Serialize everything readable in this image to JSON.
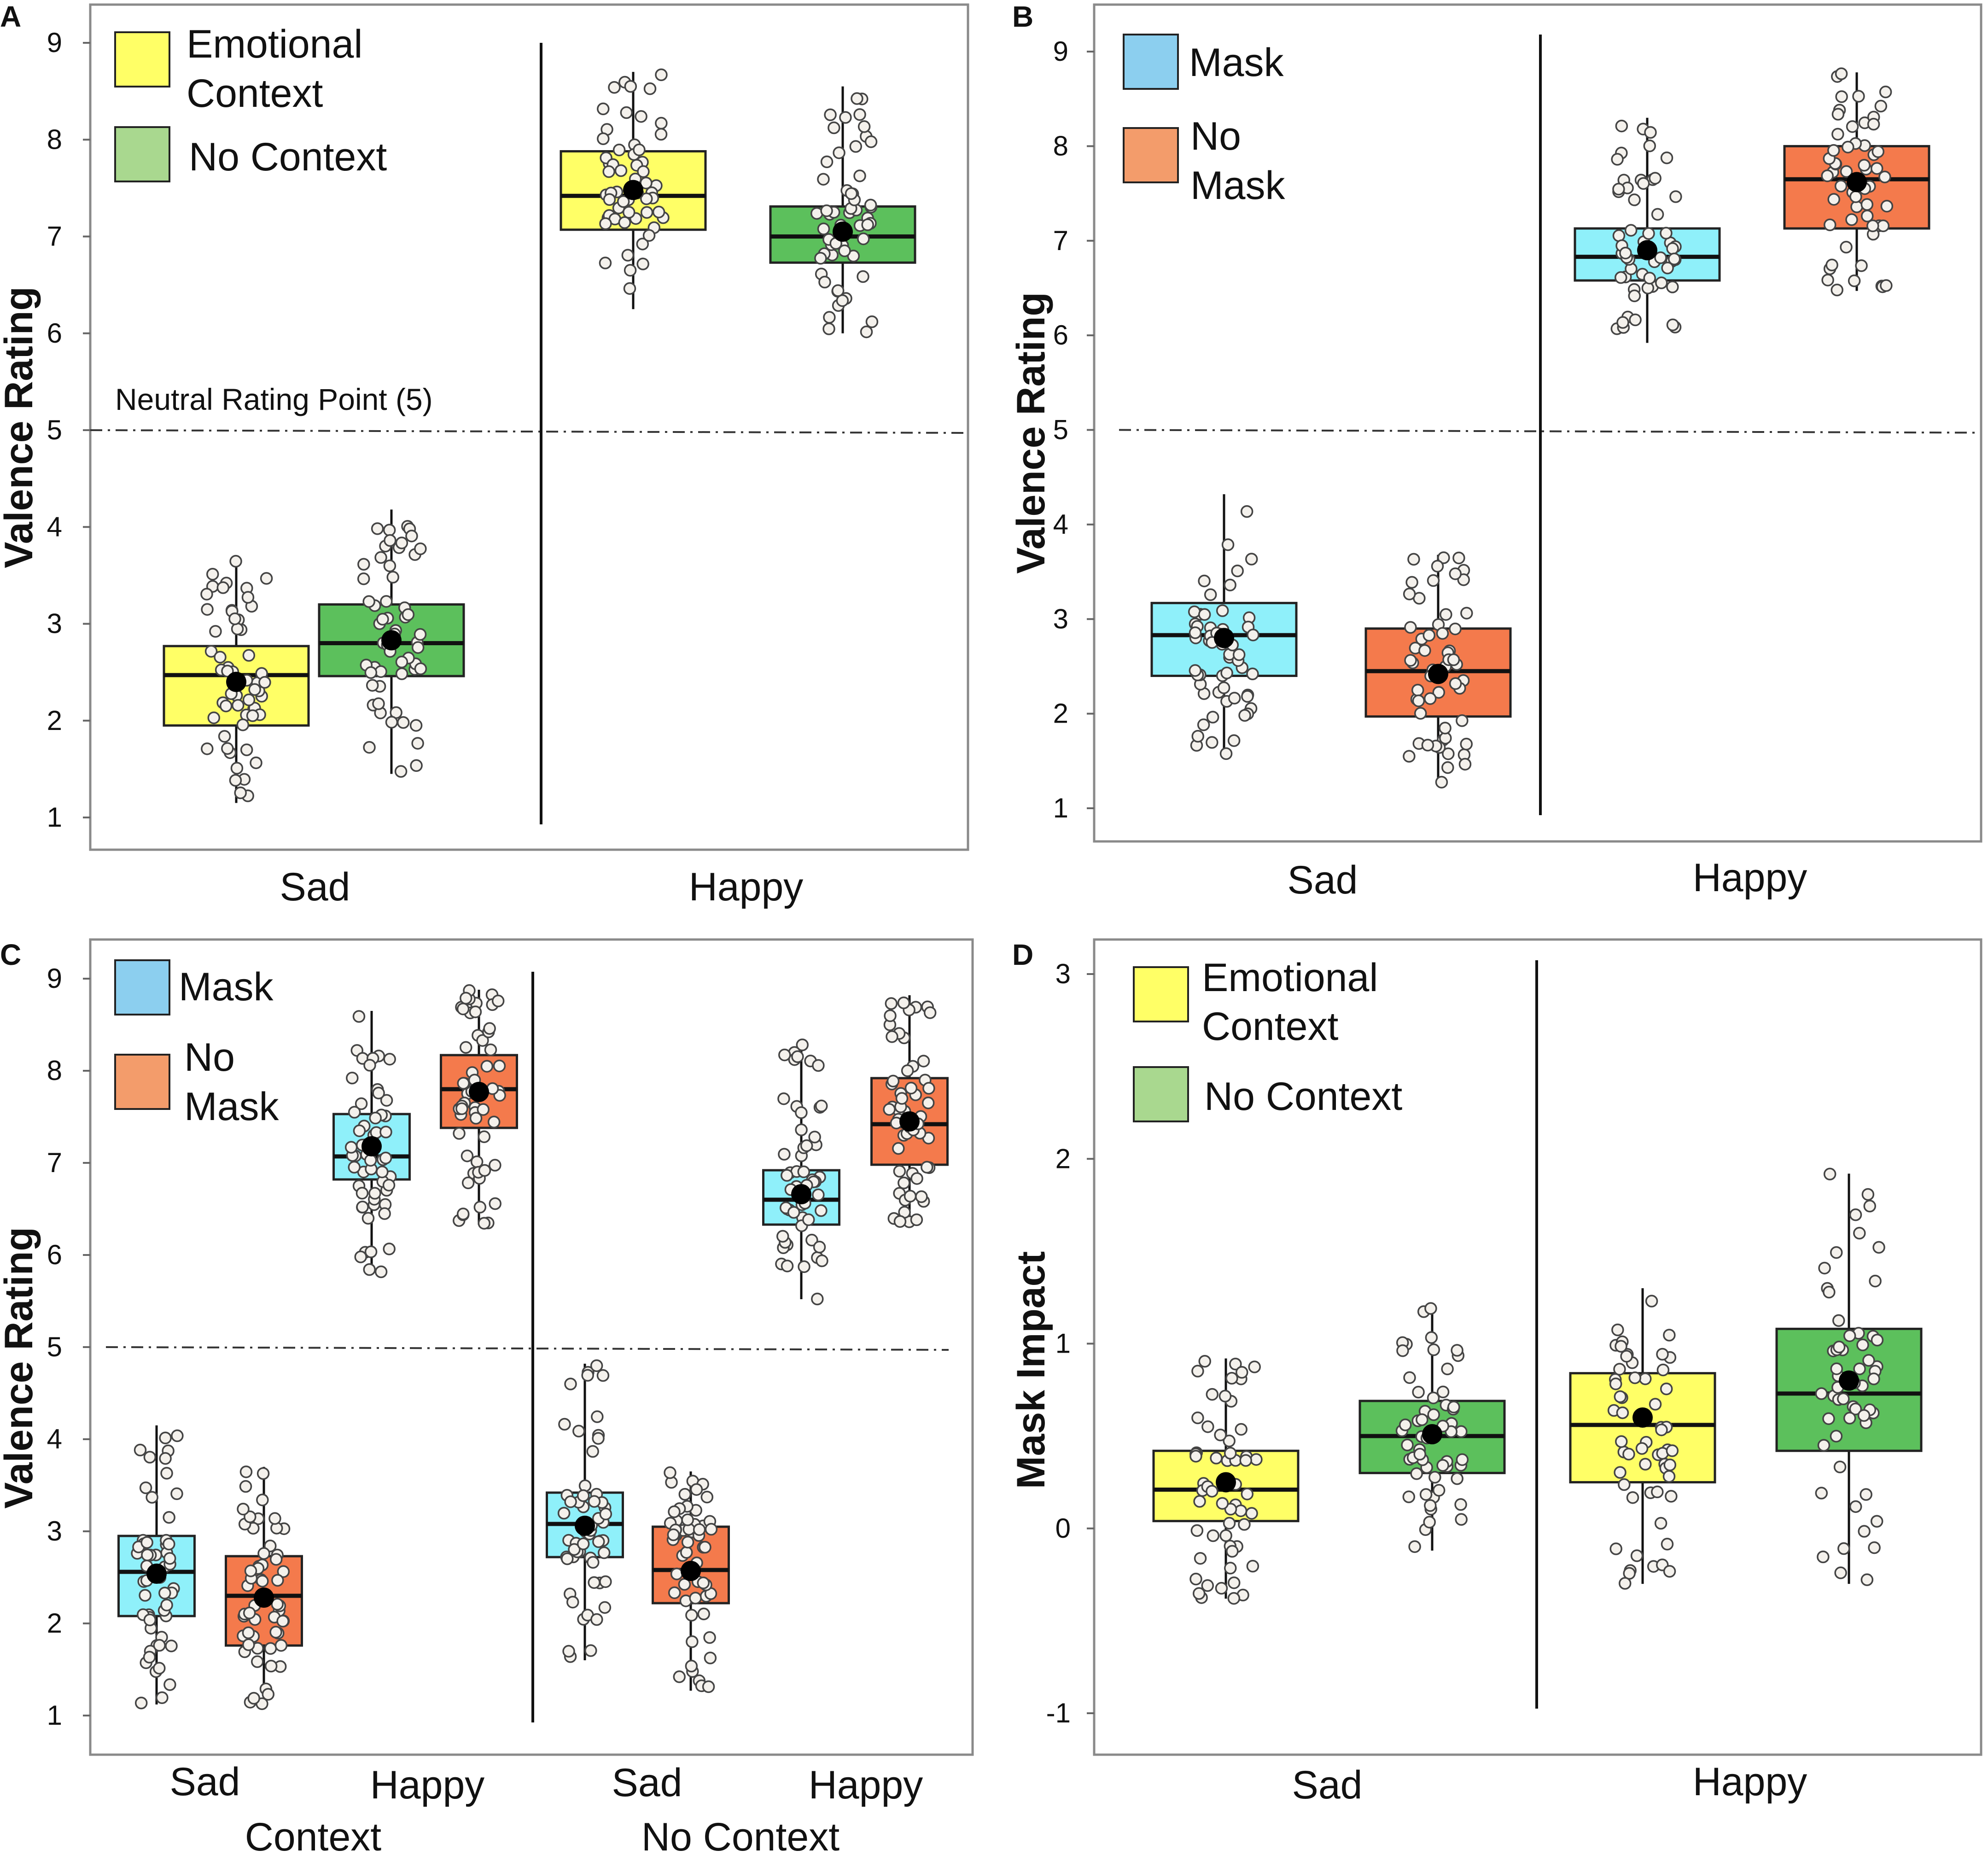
{
  "colors": {
    "emotional_context": "#ffff66",
    "no_context": "#5cc05c",
    "no_context_legend": "#a9d88f",
    "mask": "#8ff0fa",
    "mask_legend": "#8ccfef",
    "no_mask": "#f47a4c",
    "no_mask_legend": "#f39c6b",
    "point_fill": "#ffffff",
    "mean": "#000000"
  },
  "chart_data": [
    {
      "panel": "A",
      "type": "box",
      "ylabel": "Valence Rating",
      "ylim": [
        1,
        9
      ],
      "yticks": [
        "1",
        "2",
        "3",
        "4",
        "5",
        "6",
        "7",
        "8",
        "9"
      ],
      "reference_line": {
        "y": 5,
        "label": "Neutral Rating Point (5)"
      },
      "groups": [
        "Sad",
        "Happy"
      ],
      "legend": [
        {
          "label_lines": [
            "Emotional",
            "Context"
          ],
          "color": "#ffff66"
        },
        {
          "label_lines": [
            "No Context"
          ],
          "color": "#a9d88f"
        }
      ],
      "boxes": [
        {
          "group": "Sad",
          "series": "Emotional Context",
          "color": "#ffff66",
          "whisker_low": 1.15,
          "q1": 1.95,
          "median": 2.47,
          "q3": 2.77,
          "whisker_high": 3.65,
          "mean": 2.4
        },
        {
          "group": "Sad",
          "series": "No Context",
          "color": "#5cc05c",
          "whisker_low": 1.45,
          "q1": 2.46,
          "median": 2.8,
          "q3": 3.2,
          "whisker_high": 4.18,
          "mean": 2.83
        },
        {
          "group": "Happy",
          "series": "Emotional Context",
          "color": "#ffff66",
          "whisker_low": 6.25,
          "q1": 7.07,
          "median": 7.42,
          "q3": 7.88,
          "whisker_high": 8.7,
          "mean": 7.48
        },
        {
          "group": "Happy",
          "series": "No Context",
          "color": "#5cc05c",
          "whisker_low": 6.0,
          "q1": 6.73,
          "median": 7.0,
          "q3": 7.31,
          "whisker_high": 8.55,
          "mean": 7.05
        }
      ]
    },
    {
      "panel": "B",
      "type": "box",
      "ylabel": "Valence Rating",
      "ylim": [
        1,
        9
      ],
      "yticks": [
        "1",
        "2",
        "3",
        "4",
        "5",
        "6",
        "7",
        "8",
        "9"
      ],
      "reference_line": {
        "y": 5,
        "label": ""
      },
      "groups": [
        "Sad",
        "Happy"
      ],
      "legend": [
        {
          "label_lines": [
            "Mask"
          ],
          "color": "#8ccfef"
        },
        {
          "label_lines": [
            "No",
            "Mask"
          ],
          "color": "#f39c6b"
        }
      ],
      "boxes": [
        {
          "group": "Sad",
          "series": "Mask",
          "color": "#8ff0fa",
          "whisker_low": 1.55,
          "q1": 2.4,
          "median": 2.83,
          "q3": 3.17,
          "whisker_high": 4.32,
          "mean": 2.8
        },
        {
          "group": "Sad",
          "series": "No Mask",
          "color": "#f47a4c",
          "whisker_low": 1.27,
          "q1": 1.97,
          "median": 2.45,
          "q3": 2.9,
          "whisker_high": 3.68,
          "mean": 2.42
        },
        {
          "group": "Happy",
          "series": "Mask",
          "color": "#8ff0fa",
          "whisker_low": 5.92,
          "q1": 6.58,
          "median": 6.83,
          "q3": 7.13,
          "whisker_high": 8.3,
          "mean": 6.9
        },
        {
          "group": "Happy",
          "series": "No Mask",
          "color": "#f47a4c",
          "whisker_low": 6.47,
          "q1": 7.13,
          "median": 7.65,
          "q3": 8.0,
          "whisker_high": 8.78,
          "mean": 7.62
        }
      ]
    },
    {
      "panel": "C",
      "type": "box",
      "ylabel": "Valence Rating",
      "ylim": [
        1,
        9
      ],
      "yticks": [
        "1",
        "2",
        "3",
        "4",
        "5",
        "6",
        "7",
        "8",
        "9"
      ],
      "reference_line": {
        "y": 5,
        "label": ""
      },
      "groups": [
        "Sad",
        "Happy",
        "Sad",
        "Happy"
      ],
      "supergroups": [
        "Context",
        "No Context"
      ],
      "legend": [
        {
          "label_lines": [
            "Mask"
          ],
          "color": "#8ccfef"
        },
        {
          "label_lines": [
            "No",
            "Mask"
          ],
          "color": "#f39c6b"
        }
      ],
      "boxes": [
        {
          "group": "Sad",
          "supergroup": "Context",
          "series": "Mask",
          "color": "#8ff0fa",
          "whisker_low": 1.12,
          "q1": 2.08,
          "median": 2.56,
          "q3": 2.95,
          "whisker_high": 4.15,
          "mean": 2.54
        },
        {
          "group": "Sad",
          "supergroup": "Context",
          "series": "No Mask",
          "color": "#f47a4c",
          "whisker_low": 1.12,
          "q1": 1.76,
          "median": 2.3,
          "q3": 2.73,
          "whisker_high": 3.7,
          "mean": 2.28
        },
        {
          "group": "Happy",
          "supergroup": "Context",
          "series": "Mask",
          "color": "#8ff0fa",
          "whisker_low": 5.8,
          "q1": 6.82,
          "median": 7.07,
          "q3": 7.53,
          "whisker_high": 8.65,
          "mean": 7.18
        },
        {
          "group": "Happy",
          "supergroup": "Context",
          "series": "No Mask",
          "color": "#f47a4c",
          "whisker_low": 6.33,
          "q1": 7.38,
          "median": 7.8,
          "q3": 8.17,
          "whisker_high": 8.88,
          "mean": 7.77
        },
        {
          "group": "Sad",
          "supergroup": "No Context",
          "series": "Mask",
          "color": "#8ff0fa",
          "whisker_low": 1.6,
          "q1": 2.72,
          "median": 3.08,
          "q3": 3.42,
          "whisker_high": 4.82,
          "mean": 3.06
        },
        {
          "group": "Sad",
          "supergroup": "No Context",
          "series": "No Mask",
          "color": "#f47a4c",
          "whisker_low": 1.27,
          "q1": 2.22,
          "median": 2.58,
          "q3": 3.05,
          "whisker_high": 3.65,
          "mean": 2.57
        },
        {
          "group": "Happy",
          "supergroup": "No Context",
          "series": "Mask",
          "color": "#8ff0fa",
          "whisker_low": 5.52,
          "q1": 6.33,
          "median": 6.6,
          "q3": 6.92,
          "whisker_high": 8.32,
          "mean": 6.66
        },
        {
          "group": "Happy",
          "supergroup": "No Context",
          "series": "No Mask",
          "color": "#f47a4c",
          "whisker_low": 6.35,
          "q1": 6.98,
          "median": 7.42,
          "q3": 7.92,
          "whisker_high": 8.82,
          "mean": 7.45
        }
      ]
    },
    {
      "panel": "D",
      "type": "box",
      "ylabel": "Mask Impact",
      "ylim": [
        -1,
        3
      ],
      "yticks": [
        "-1",
        "0",
        "1",
        "2",
        "3"
      ],
      "reference_line": null,
      "groups": [
        "Sad",
        "Happy"
      ],
      "legend": [
        {
          "label_lines": [
            "Emotional",
            "Context"
          ],
          "color": "#ffff66"
        },
        {
          "label_lines": [
            "No Context"
          ],
          "color": "#a9d88f"
        }
      ],
      "boxes": [
        {
          "group": "Sad",
          "series": "Emotional Context",
          "color": "#ffff66",
          "whisker_low": -0.38,
          "q1": 0.04,
          "median": 0.21,
          "q3": 0.42,
          "whisker_high": 0.92,
          "mean": 0.25
        },
        {
          "group": "Sad",
          "series": "No Context",
          "color": "#5cc05c",
          "whisker_low": -0.12,
          "q1": 0.3,
          "median": 0.5,
          "q3": 0.69,
          "whisker_high": 1.22,
          "mean": 0.51
        },
        {
          "group": "Happy",
          "series": "Emotional Context",
          "color": "#ffff66",
          "whisker_low": -0.3,
          "q1": 0.25,
          "median": 0.56,
          "q3": 0.84,
          "whisker_high": 1.3,
          "mean": 0.6
        },
        {
          "group": "Happy",
          "series": "No Context",
          "color": "#5cc05c",
          "whisker_low": -0.3,
          "q1": 0.42,
          "median": 0.73,
          "q3": 1.08,
          "whisker_high": 1.92,
          "mean": 0.8
        }
      ]
    }
  ]
}
